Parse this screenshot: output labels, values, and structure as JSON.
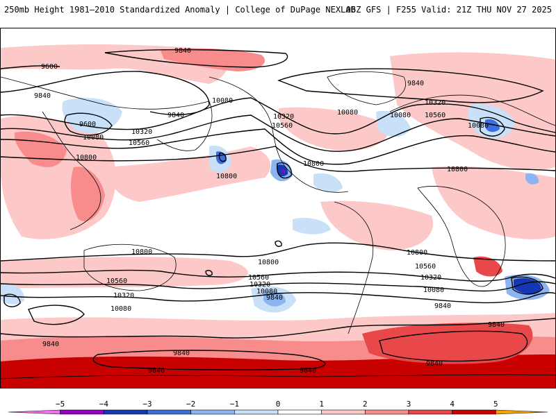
{
  "header": {
    "left_title": "250mb Height 1981–2010 Standardized Anomaly | College of DuPage NEXLAB",
    "right_title": "06Z GFS | F255 Valid: 21Z THU NOV 27 2025"
  },
  "colors": {
    "pos1": "#fcc8c8",
    "pos2": "#f88c8c",
    "pos3": "#e8484a",
    "pos4": "#c80000",
    "pos5": "#f5a300",
    "neg1": "#c8e0f8",
    "neg2": "#8cb4f0",
    "neg3": "#3c6edc",
    "neg4": "#1438b4",
    "neg5": "#9600c8",
    "neg6": "#f070f0",
    "contour": "#000000",
    "coast": "#000000"
  },
  "colorbar": {
    "ticks": [
      "−5",
      "−4",
      "−3",
      "−2",
      "−1",
      "0",
      "1",
      "2",
      "3",
      "4",
      "5"
    ],
    "segment_colors": [
      "#f070f0",
      "#9600c8",
      "#1438b4",
      "#3c6edc",
      "#8cb4f0",
      "#c8e0f8",
      "#ffffff",
      "#fcc8c8",
      "#f88c8c",
      "#e8484a",
      "#c80000",
      "#f5a300"
    ]
  },
  "contour_labels": {
    "l1": "9840",
    "l2": "9600",
    "l3": "9840",
    "l4": "9600",
    "l5": "9840",
    "l6": "10080",
    "l7": "10320",
    "l8": "10080",
    "l9": "10560",
    "l10": "10800",
    "l11": "10080",
    "l12": "10320",
    "l13": "10560",
    "l14": "10800",
    "l15": "10800",
    "l16": "10080",
    "l17": "9840",
    "l18": "10320",
    "l19": "10560",
    "l20": "10080",
    "l21": "10800",
    "l22": "10800",
    "l23": "10800",
    "l24": "10560",
    "l25": "10320",
    "l26": "10080",
    "l27": "10560",
    "l28": "10320",
    "l29": "10080",
    "l30": "9840",
    "l31": "10800",
    "l32": "10560",
    "l33": "10320",
    "l34": "10080",
    "l35": "9840",
    "l36": "9840",
    "l37": "9840",
    "l38": "9840",
    "l39": "9840",
    "l40": "9840",
    "l41": "9840"
  }
}
